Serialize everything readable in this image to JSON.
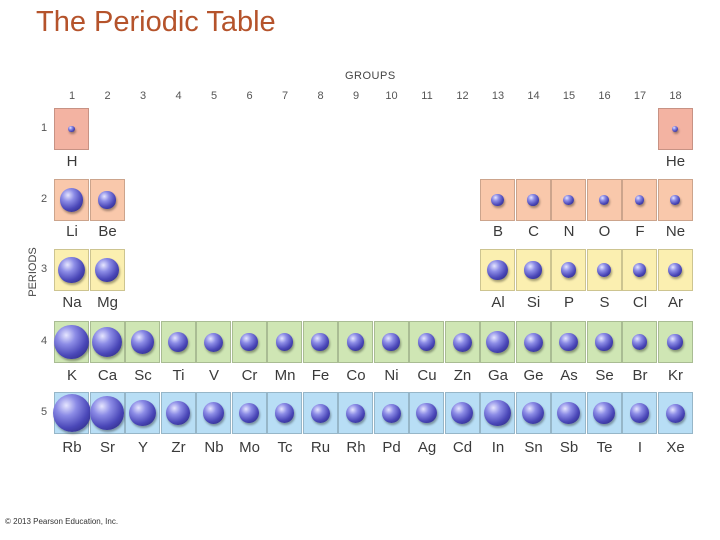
{
  "title": "The Periodic Table",
  "groups_caption": "GROUPS",
  "periods_caption": "PERIODS",
  "group_numbers": [
    "1",
    "2",
    "3",
    "4",
    "5",
    "6",
    "7",
    "8",
    "9",
    "10",
    "11",
    "12",
    "13",
    "14",
    "15",
    "16",
    "17",
    "18"
  ],
  "period_numbers": [
    "1",
    "2",
    "3",
    "4",
    "5"
  ],
  "colors": {
    "s_pink": "#f3b3a2",
    "p_period2": "#f9c8ab",
    "p_period3": "#fbefb0",
    "period4": "#cfe6b4",
    "period5": "#b8def5",
    "title": "#b5532b"
  },
  "elements": [
    {
      "symbol": "H",
      "group": 1,
      "period": 1,
      "radius": 0.16,
      "color": "#f3b3a2"
    },
    {
      "symbol": "He",
      "group": 18,
      "period": 1,
      "radius": 0.14,
      "color": "#f3b3a2"
    },
    {
      "symbol": "Li",
      "group": 1,
      "period": 2,
      "radius": 0.62,
      "color": "#f9c8ab"
    },
    {
      "symbol": "Be",
      "group": 2,
      "period": 2,
      "radius": 0.45,
      "color": "#f9c8ab"
    },
    {
      "symbol": "B",
      "group": 13,
      "period": 2,
      "radius": 0.32,
      "color": "#f9c8ab"
    },
    {
      "symbol": "C",
      "group": 14,
      "period": 2,
      "radius": 0.3,
      "color": "#f9c8ab"
    },
    {
      "symbol": "N",
      "group": 15,
      "period": 2,
      "radius": 0.27,
      "color": "#f9c8ab"
    },
    {
      "symbol": "O",
      "group": 16,
      "period": 2,
      "radius": 0.25,
      "color": "#f9c8ab"
    },
    {
      "symbol": "F",
      "group": 17,
      "period": 2,
      "radius": 0.24,
      "color": "#f9c8ab"
    },
    {
      "symbol": "Ne",
      "group": 18,
      "period": 2,
      "radius": 0.24,
      "color": "#f9c8ab"
    },
    {
      "symbol": "Na",
      "group": 1,
      "period": 3,
      "radius": 0.7,
      "color": "#fbefb0"
    },
    {
      "symbol": "Mg",
      "group": 2,
      "period": 3,
      "radius": 0.62,
      "color": "#fbefb0"
    },
    {
      "symbol": "Al",
      "group": 13,
      "period": 3,
      "radius": 0.55,
      "color": "#fbefb0"
    },
    {
      "symbol": "Si",
      "group": 14,
      "period": 3,
      "radius": 0.45,
      "color": "#fbefb0"
    },
    {
      "symbol": "P",
      "group": 15,
      "period": 3,
      "radius": 0.42,
      "color": "#fbefb0"
    },
    {
      "symbol": "S",
      "group": 16,
      "period": 3,
      "radius": 0.38,
      "color": "#fbefb0"
    },
    {
      "symbol": "Cl",
      "group": 17,
      "period": 3,
      "radius": 0.36,
      "color": "#fbefb0"
    },
    {
      "symbol": "Ar",
      "group": 18,
      "period": 3,
      "radius": 0.36,
      "color": "#fbefb0"
    },
    {
      "symbol": "K",
      "group": 1,
      "period": 4,
      "radius": 0.92,
      "color": "#cfe6b4"
    },
    {
      "symbol": "Ca",
      "group": 2,
      "period": 4,
      "radius": 0.8,
      "color": "#cfe6b4"
    },
    {
      "symbol": "Sc",
      "group": 3,
      "period": 4,
      "radius": 0.62,
      "color": "#cfe6b4"
    },
    {
      "symbol": "Ti",
      "group": 4,
      "period": 4,
      "radius": 0.55,
      "color": "#cfe6b4"
    },
    {
      "symbol": "V",
      "group": 5,
      "period": 4,
      "radius": 0.5,
      "color": "#cfe6b4"
    },
    {
      "symbol": "Cr",
      "group": 6,
      "period": 4,
      "radius": 0.46,
      "color": "#cfe6b4"
    },
    {
      "symbol": "Mn",
      "group": 7,
      "period": 4,
      "radius": 0.46,
      "color": "#cfe6b4"
    },
    {
      "symbol": "Fe",
      "group": 8,
      "period": 4,
      "radius": 0.45,
      "color": "#cfe6b4"
    },
    {
      "symbol": "Co",
      "group": 9,
      "period": 4,
      "radius": 0.45,
      "color": "#cfe6b4"
    },
    {
      "symbol": "Ni",
      "group": 10,
      "period": 4,
      "radius": 0.45,
      "color": "#cfe6b4"
    },
    {
      "symbol": "Cu",
      "group": 11,
      "period": 4,
      "radius": 0.46,
      "color": "#cfe6b4"
    },
    {
      "symbol": "Zn",
      "group": 12,
      "period": 4,
      "radius": 0.5,
      "color": "#cfe6b4"
    },
    {
      "symbol": "Ga",
      "group": 13,
      "period": 4,
      "radius": 0.58,
      "color": "#cfe6b4"
    },
    {
      "symbol": "Ge",
      "group": 14,
      "period": 4,
      "radius": 0.5,
      "color": "#cfe6b4"
    },
    {
      "symbol": "As",
      "group": 15,
      "period": 4,
      "radius": 0.48,
      "color": "#cfe6b4"
    },
    {
      "symbol": "Se",
      "group": 16,
      "period": 4,
      "radius": 0.45,
      "color": "#cfe6b4"
    },
    {
      "symbol": "Br",
      "group": 17,
      "period": 4,
      "radius": 0.42,
      "color": "#cfe6b4"
    },
    {
      "symbol": "Kr",
      "group": 18,
      "period": 4,
      "radius": 0.4,
      "color": "#cfe6b4"
    },
    {
      "symbol": "Rb",
      "group": 1,
      "period": 5,
      "radius": 1.0,
      "color": "#b8def5"
    },
    {
      "symbol": "Sr",
      "group": 2,
      "period": 5,
      "radius": 0.88,
      "color": "#b8def5"
    },
    {
      "symbol": "Y",
      "group": 3,
      "period": 5,
      "radius": 0.7,
      "color": "#b8def5"
    },
    {
      "symbol": "Zr",
      "group": 4,
      "period": 5,
      "radius": 0.62,
      "color": "#b8def5"
    },
    {
      "symbol": "Nb",
      "group": 5,
      "period": 5,
      "radius": 0.56,
      "color": "#b8def5"
    },
    {
      "symbol": "Mo",
      "group": 6,
      "period": 5,
      "radius": 0.52,
      "color": "#b8def5"
    },
    {
      "symbol": "Tc",
      "group": 7,
      "period": 5,
      "radius": 0.52,
      "color": "#b8def5"
    },
    {
      "symbol": "Ru",
      "group": 8,
      "period": 5,
      "radius": 0.5,
      "color": "#b8def5"
    },
    {
      "symbol": "Rh",
      "group": 9,
      "period": 5,
      "radius": 0.5,
      "color": "#b8def5"
    },
    {
      "symbol": "Pd",
      "group": 10,
      "period": 5,
      "radius": 0.5,
      "color": "#b8def5"
    },
    {
      "symbol": "Ag",
      "group": 11,
      "period": 5,
      "radius": 0.54,
      "color": "#b8def5"
    },
    {
      "symbol": "Cd",
      "group": 12,
      "period": 5,
      "radius": 0.58,
      "color": "#b8def5"
    },
    {
      "symbol": "In",
      "group": 13,
      "period": 5,
      "radius": 0.7,
      "color": "#b8def5"
    },
    {
      "symbol": "Sn",
      "group": 14,
      "period": 5,
      "radius": 0.6,
      "color": "#b8def5"
    },
    {
      "symbol": "Sb",
      "group": 15,
      "period": 5,
      "radius": 0.58,
      "color": "#b8def5"
    },
    {
      "symbol": "Te",
      "group": 16,
      "period": 5,
      "radius": 0.56,
      "color": "#b8def5"
    },
    {
      "symbol": "I",
      "group": 17,
      "period": 5,
      "radius": 0.52,
      "color": "#b8def5"
    },
    {
      "symbol": "Xe",
      "group": 18,
      "period": 5,
      "radius": 0.5,
      "color": "#b8def5"
    }
  ],
  "copyright": "© 2013 Pearson Education, Inc."
}
